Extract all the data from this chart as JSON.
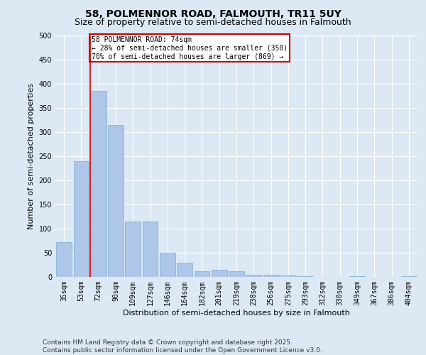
{
  "title_line1": "58, POLMENNOR ROAD, FALMOUTH, TR11 5UY",
  "title_line2": "Size of property relative to semi-detached houses in Falmouth",
  "xlabel": "Distribution of semi-detached houses by size in Falmouth",
  "ylabel": "Number of semi-detached properties",
  "categories": [
    "35sqm",
    "53sqm",
    "72sqm",
    "90sqm",
    "109sqm",
    "127sqm",
    "146sqm",
    "164sqm",
    "182sqm",
    "201sqm",
    "219sqm",
    "238sqm",
    "256sqm",
    "275sqm",
    "293sqm",
    "312sqm",
    "330sqm",
    "349sqm",
    "367sqm",
    "386sqm",
    "404sqm"
  ],
  "values": [
    72,
    240,
    385,
    315,
    115,
    115,
    50,
    30,
    12,
    14,
    12,
    5,
    4,
    3,
    2,
    0,
    0,
    2,
    0,
    0,
    2
  ],
  "bar_color": "#aec6e8",
  "bar_edge_color": "#7aadd4",
  "property_line_label": "58 POLMENNOR ROAD: 74sqm",
  "annotation_smaller": "← 28% of semi-detached houses are smaller (350)",
  "annotation_larger": "70% of semi-detached houses are larger (869) →",
  "annotation_box_color": "#ffffff",
  "annotation_box_edge": "#cc0000",
  "line_color": "#cc0000",
  "ylim": [
    0,
    500
  ],
  "yticks": [
    0,
    50,
    100,
    150,
    200,
    250,
    300,
    350,
    400,
    450,
    500
  ],
  "background_color": "#dce9f5",
  "plot_bg_color": "#dce9f5",
  "footer_line1": "Contains HM Land Registry data © Crown copyright and database right 2025.",
  "footer_line2": "Contains public sector information licensed under the Open Government Licence v3.0.",
  "title_fontsize": 10,
  "subtitle_fontsize": 9,
  "xlabel_fontsize": 8,
  "ylabel_fontsize": 8,
  "tick_fontsize": 7,
  "footer_fontsize": 6.5
}
